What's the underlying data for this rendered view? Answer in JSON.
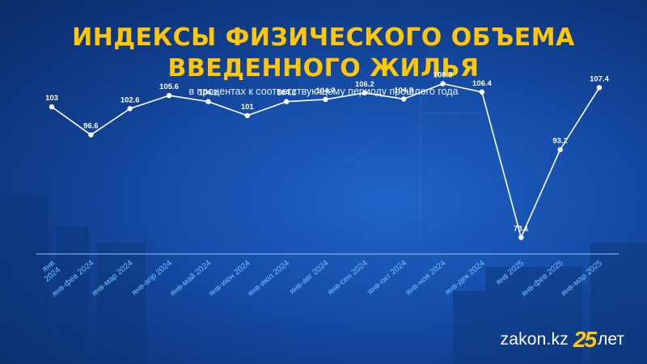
{
  "title_lines": [
    "ИНДЕКСЫ ФИЗИЧЕСКОГО ОБЪЕМА",
    "ВВЕДЕННОГО ЖИЛЬЯ"
  ],
  "subtitle": "в процентах к соответствующему периоду прошлого года",
  "colors": {
    "title": "#ffc60a",
    "line": "#ffffff",
    "axis": "#9fd0ff",
    "tick_labels": "#6fc3ff",
    "background": "#1650ad"
  },
  "chart_data": {
    "type": "line",
    "title": "ИНДЕКСЫ ФИЗИЧЕСКОГО ОБЪЕМА ВВЕДЕННОГО ЖИЛЬЯ",
    "subtitle": "в процентах к соответствующему периоду прошлого года",
    "categories": [
      [
        "янв",
        "2024"
      ],
      [
        "янв-фев 2024"
      ],
      [
        "янв-мар 2024"
      ],
      [
        "янв-апр 2024"
      ],
      [
        "янв-май 2024"
      ],
      [
        "янв-июн 2024"
      ],
      [
        "янв-июл 2024"
      ],
      [
        "янв-авг 2024"
      ],
      [
        "янв-сен 2024"
      ],
      [
        "янв-окт 2024"
      ],
      [
        "янв-ноя 2024"
      ],
      [
        "янв-дек 2024"
      ],
      [
        "янв 2025"
      ],
      [
        "янв-фев 2025"
      ],
      [
        "янв-мар 2025"
      ]
    ],
    "values": [
      103,
      96.6,
      102.6,
      105.6,
      104.2,
      101,
      104.2,
      104.7,
      106.2,
      104.8,
      108.3,
      106.4,
      73.1,
      93.2,
      107.4
    ],
    "value_labels": [
      "103",
      "96.6",
      "102.6",
      "105.6",
      "104.2",
      "101",
      "104.2",
      "104.7",
      "106.2",
      "104.8",
      "108.3",
      "106.4",
      "73.1",
      "93.2",
      "107.4"
    ],
    "xlabel": "",
    "ylabel": "",
    "grid": false,
    "legend": "none"
  },
  "logo": {
    "site": "zakon.kz",
    "number": "25",
    "years": "лет"
  }
}
